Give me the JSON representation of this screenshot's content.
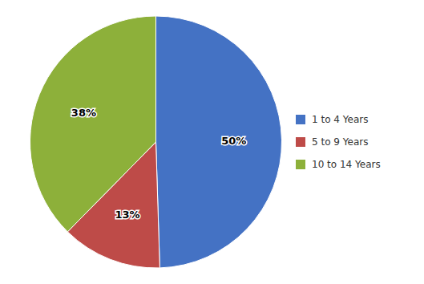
{
  "chart_data": {
    "type": "pie",
    "categories": [
      "1 to 4 Years",
      "5 to 9 Years",
      "10 to 14 Years"
    ],
    "values": [
      50,
      13,
      38
    ],
    "value_labels": [
      "50%",
      "13%",
      "38%"
    ],
    "colors": [
      "#4472C4",
      "#BE4B48",
      "#8DB03A"
    ],
    "data_labels": true,
    "legend": "right"
  }
}
